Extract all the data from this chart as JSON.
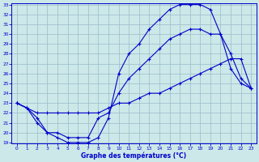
{
  "xlabel": "Graphe des températures (°C)",
  "bg_color": "#cce8e8",
  "line_color": "#0000cc",
  "grid_color": "#99bbcc",
  "hours": [
    0,
    1,
    2,
    3,
    4,
    5,
    6,
    7,
    8,
    9,
    10,
    11,
    12,
    13,
    14,
    15,
    16,
    17,
    18,
    19,
    20,
    21,
    22,
    23
  ],
  "line_max": [
    23.0,
    22.5,
    21.5,
    20.0,
    19.5,
    19.0,
    19.0,
    19.0,
    19.5,
    21.5,
    26.0,
    28.0,
    29.0,
    30.5,
    31.5,
    32.5,
    33.0,
    33.0,
    33.0,
    32.5,
    30.0,
    28.0,
    25.5,
    24.5
  ],
  "line_mid": [
    23.0,
    22.5,
    21.0,
    20.0,
    20.0,
    19.5,
    19.5,
    19.5,
    21.5,
    22.0,
    24.0,
    25.5,
    26.5,
    27.5,
    28.5,
    29.5,
    30.0,
    30.5,
    30.5,
    30.0,
    30.0,
    26.5,
    25.0,
    24.5
  ],
  "line_min": [
    23.0,
    22.5,
    22.0,
    22.0,
    22.0,
    22.0,
    22.0,
    22.0,
    22.0,
    22.5,
    23.0,
    23.0,
    23.5,
    24.0,
    24.0,
    24.5,
    25.0,
    25.5,
    26.0,
    26.5,
    27.0,
    27.5,
    27.5,
    24.5
  ],
  "ylim": [
    19,
    33
  ],
  "yticks": [
    19,
    20,
    21,
    22,
    23,
    24,
    25,
    26,
    27,
    28,
    29,
    30,
    31,
    32,
    33
  ],
  "xlim": [
    -0.5,
    23.5
  ],
  "xticks": [
    0,
    1,
    2,
    3,
    4,
    5,
    6,
    7,
    8,
    9,
    10,
    11,
    12,
    13,
    14,
    15,
    16,
    17,
    18,
    19,
    20,
    21,
    22,
    23
  ]
}
